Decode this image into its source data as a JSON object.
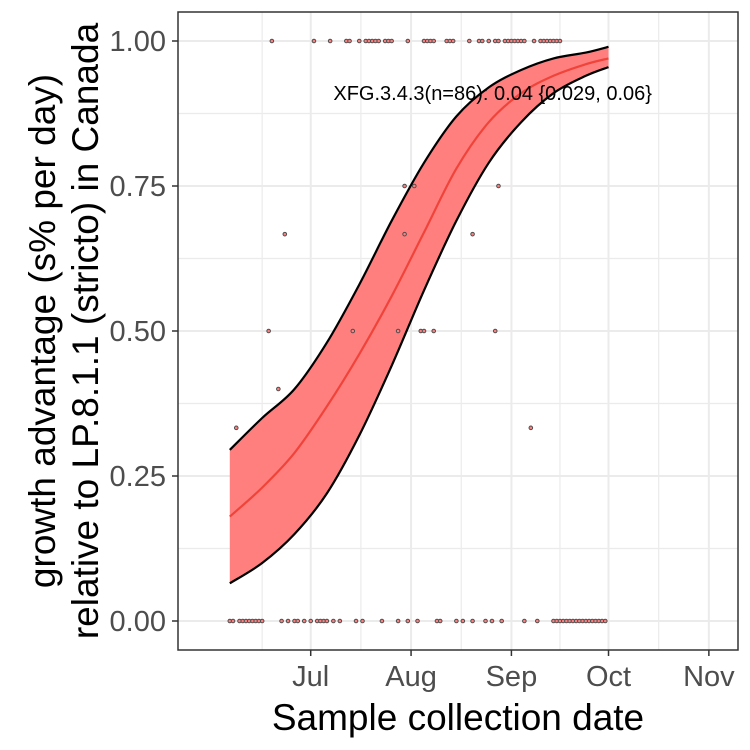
{
  "chart_data": {
    "type": "line",
    "title": "",
    "xlabel": "Sample collection date",
    "ylabel_line1": "growth advantage (s% per day)",
    "ylabel_line2": "relative to LP.8.1.1 (stricto) in Canada",
    "xlim": [
      "2025-05-21",
      "2025-11-10"
    ],
    "ylim": [
      -0.05,
      1.05
    ],
    "x_ticks": [
      {
        "date": "2025-07-01",
        "label": "Jul"
      },
      {
        "date": "2025-08-01",
        "label": "Aug"
      },
      {
        "date": "2025-09-01",
        "label": "Sep"
      },
      {
        "date": "2025-10-01",
        "label": "Oct"
      },
      {
        "date": "2025-11-01",
        "label": "Nov"
      }
    ],
    "y_ticks": [
      {
        "value": 0,
        "label": "0.00"
      },
      {
        "value": 0.25,
        "label": "0.25"
      },
      {
        "value": 0.5,
        "label": "0.50"
      },
      {
        "value": 0.75,
        "label": "0.75"
      },
      {
        "value": 1,
        "label": "1.00"
      }
    ],
    "grid": true,
    "colors": {
      "band_fill": "#ff7f7f",
      "band_edge": "#000000",
      "fit_line": "#f0443a",
      "points": "#4d4d4d",
      "grid": "#ebebeb",
      "panel_border": "#333333"
    },
    "series": [
      {
        "kind": "fit",
        "x": [
          "2025-06-06",
          "2025-06-16",
          "2025-06-26",
          "2025-07-06",
          "2025-07-16",
          "2025-07-26",
          "2025-08-05",
          "2025-08-15",
          "2025-08-25",
          "2025-09-04",
          "2025-09-14",
          "2025-09-24",
          "2025-10-01"
        ],
        "y": [
          0.18,
          0.23,
          0.29,
          0.37,
          0.46,
          0.56,
          0.67,
          0.78,
          0.86,
          0.91,
          0.94,
          0.96,
          0.97
        ],
        "lower": [
          0.065,
          0.1,
          0.15,
          0.22,
          0.32,
          0.44,
          0.57,
          0.69,
          0.79,
          0.86,
          0.91,
          0.94,
          0.955
        ],
        "upper": [
          0.295,
          0.35,
          0.4,
          0.48,
          0.58,
          0.69,
          0.79,
          0.87,
          0.92,
          0.95,
          0.97,
          0.98,
          0.99
        ]
      },
      {
        "kind": "observed",
        "points": [
          {
            "x": "2025-06-06",
            "y": 0
          },
          {
            "x": "2025-06-07",
            "y": 0
          },
          {
            "x": "2025-06-08",
            "y": 0.333
          },
          {
            "x": "2025-06-09",
            "y": 0
          },
          {
            "x": "2025-06-10",
            "y": 0
          },
          {
            "x": "2025-06-11",
            "y": 0
          },
          {
            "x": "2025-06-12",
            "y": 0
          },
          {
            "x": "2025-06-13",
            "y": 0
          },
          {
            "x": "2025-06-14",
            "y": 0
          },
          {
            "x": "2025-06-15",
            "y": 0
          },
          {
            "x": "2025-06-16",
            "y": 0
          },
          {
            "x": "2025-06-18",
            "y": 0.5
          },
          {
            "x": "2025-06-19",
            "y": 1
          },
          {
            "x": "2025-06-21",
            "y": 0.4
          },
          {
            "x": "2025-06-22",
            "y": 0
          },
          {
            "x": "2025-06-23",
            "y": 0.667
          },
          {
            "x": "2025-06-24",
            "y": 0
          },
          {
            "x": "2025-06-26",
            "y": 0
          },
          {
            "x": "2025-06-27",
            "y": 0
          },
          {
            "x": "2025-06-29",
            "y": 0
          },
          {
            "x": "2025-07-01",
            "y": 0
          },
          {
            "x": "2025-07-02",
            "y": 1
          },
          {
            "x": "2025-07-03",
            "y": 0
          },
          {
            "x": "2025-07-04",
            "y": 0
          },
          {
            "x": "2025-07-05",
            "y": 0
          },
          {
            "x": "2025-07-06",
            "y": 0
          },
          {
            "x": "2025-07-07",
            "y": 1
          },
          {
            "x": "2025-07-08",
            "y": 0
          },
          {
            "x": "2025-07-10",
            "y": 0
          },
          {
            "x": "2025-07-12",
            "y": 1
          },
          {
            "x": "2025-07-13",
            "y": 1
          },
          {
            "x": "2025-07-14",
            "y": 0.5
          },
          {
            "x": "2025-07-15",
            "y": 0
          },
          {
            "x": "2025-07-16",
            "y": 1
          },
          {
            "x": "2025-07-17",
            "y": 0
          },
          {
            "x": "2025-07-18",
            "y": 1
          },
          {
            "x": "2025-07-19",
            "y": 1
          },
          {
            "x": "2025-07-20",
            "y": 1
          },
          {
            "x": "2025-07-21",
            "y": 1
          },
          {
            "x": "2025-07-22",
            "y": 1
          },
          {
            "x": "2025-07-23",
            "y": 0
          },
          {
            "x": "2025-07-24",
            "y": 1
          },
          {
            "x": "2025-07-25",
            "y": 1
          },
          {
            "x": "2025-07-26",
            "y": 1
          },
          {
            "x": "2025-07-28",
            "y": 0.5
          },
          {
            "x": "2025-07-28",
            "y": 0
          },
          {
            "x": "2025-07-30",
            "y": 0.75
          },
          {
            "x": "2025-07-30",
            "y": 0.667
          },
          {
            "x": "2025-07-31",
            "y": 0
          },
          {
            "x": "2025-07-31",
            "y": 1
          },
          {
            "x": "2025-08-02",
            "y": 0.75
          },
          {
            "x": "2025-08-03",
            "y": 0
          },
          {
            "x": "2025-08-04",
            "y": 0.5
          },
          {
            "x": "2025-08-05",
            "y": 0.5
          },
          {
            "x": "2025-08-05",
            "y": 1
          },
          {
            "x": "2025-08-06",
            "y": 1
          },
          {
            "x": "2025-08-07",
            "y": 1
          },
          {
            "x": "2025-08-08",
            "y": 0.5
          },
          {
            "x": "2025-08-08",
            "y": 1
          },
          {
            "x": "2025-08-09",
            "y": 0
          },
          {
            "x": "2025-08-10",
            "y": 0
          },
          {
            "x": "2025-08-12",
            "y": 1
          },
          {
            "x": "2025-08-13",
            "y": 1
          },
          {
            "x": "2025-08-14",
            "y": 1
          },
          {
            "x": "2025-08-15",
            "y": 0
          },
          {
            "x": "2025-08-17",
            "y": 0
          },
          {
            "x": "2025-08-19",
            "y": 1
          },
          {
            "x": "2025-08-20",
            "y": 0.667
          },
          {
            "x": "2025-08-20",
            "y": 0
          },
          {
            "x": "2025-08-22",
            "y": 1
          },
          {
            "x": "2025-08-23",
            "y": 1
          },
          {
            "x": "2025-08-24",
            "y": 0
          },
          {
            "x": "2025-08-25",
            "y": 1
          },
          {
            "x": "2025-08-26",
            "y": 0
          },
          {
            "x": "2025-08-27",
            "y": 0.5
          },
          {
            "x": "2025-08-27",
            "y": 1
          },
          {
            "x": "2025-08-28",
            "y": 0.75
          },
          {
            "x": "2025-08-28",
            "y": 1
          },
          {
            "x": "2025-08-29",
            "y": 0
          },
          {
            "x": "2025-08-30",
            "y": 1
          },
          {
            "x": "2025-08-31",
            "y": 1
          },
          {
            "x": "2025-09-01",
            "y": 1
          },
          {
            "x": "2025-09-02",
            "y": 1
          },
          {
            "x": "2025-09-03",
            "y": 1
          },
          {
            "x": "2025-09-04",
            "y": 1
          },
          {
            "x": "2025-09-05",
            "y": 1
          },
          {
            "x": "2025-09-05",
            "y": 0
          },
          {
            "x": "2025-09-07",
            "y": 0.333
          },
          {
            "x": "2025-09-08",
            "y": 1
          },
          {
            "x": "2025-09-09",
            "y": 0
          },
          {
            "x": "2025-09-10",
            "y": 1
          },
          {
            "x": "2025-09-11",
            "y": 1
          },
          {
            "x": "2025-09-12",
            "y": 1
          },
          {
            "x": "2025-09-13",
            "y": 1
          },
          {
            "x": "2025-09-14",
            "y": 1
          },
          {
            "x": "2025-09-15",
            "y": 1
          },
          {
            "x": "2025-09-16",
            "y": 1
          },
          {
            "x": "2025-09-14",
            "y": 0
          },
          {
            "x": "2025-09-15",
            "y": 0
          },
          {
            "x": "2025-09-16",
            "y": 0
          },
          {
            "x": "2025-09-17",
            "y": 0
          },
          {
            "x": "2025-09-18",
            "y": 0
          },
          {
            "x": "2025-09-19",
            "y": 0
          },
          {
            "x": "2025-09-20",
            "y": 0
          },
          {
            "x": "2025-09-21",
            "y": 0
          },
          {
            "x": "2025-09-22",
            "y": 0
          },
          {
            "x": "2025-09-23",
            "y": 0
          },
          {
            "x": "2025-09-24",
            "y": 0
          },
          {
            "x": "2025-09-25",
            "y": 0
          },
          {
            "x": "2025-09-26",
            "y": 0
          },
          {
            "x": "2025-09-27",
            "y": 0
          },
          {
            "x": "2025-09-28",
            "y": 0
          },
          {
            "x": "2025-09-29",
            "y": 0
          },
          {
            "x": "2025-09-30",
            "y": 0
          }
        ]
      }
    ],
    "annotations": [
      {
        "text": "XFG.3.4.3(n=86): 0.04 {0.029, 0.06}",
        "x": "2025-07-08",
        "y": 0.91
      }
    ]
  }
}
